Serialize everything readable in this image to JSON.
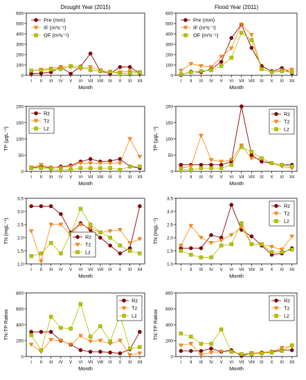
{
  "colors": {
    "pre": "#8B0000",
    "ifc": "#FF8C1A",
    "ofc": "#B5C400"
  },
  "months": [
    "I",
    "II",
    "III",
    "IV",
    "V",
    "VI",
    "VII",
    "VIII",
    "IX",
    "X",
    "XI",
    "XII"
  ],
  "xlabel": "Month",
  "chart_data": [
    {
      "type": "line",
      "id": "p0",
      "title": "Drought Year (2015)",
      "xlabel": "Month",
      "ylabel": "",
      "ylim": [
        0,
        600
      ],
      "yticks": [
        0,
        100,
        200,
        300,
        400,
        500,
        600
      ],
      "legend": "top-left",
      "series": [
        {
          "name": "Pre (mm)",
          "marker": "circle",
          "color": "#8B0000",
          "values": [
            15,
            20,
            30,
            80,
            15,
            85,
            210,
            40,
            15,
            80,
            80,
            20
          ]
        },
        {
          "name": "IF (m³s⁻¹)",
          "marker": "tri",
          "color": "#FF8C1A",
          "values": [
            45,
            55,
            65,
            80,
            80,
            60,
            80,
            50,
            30,
            30,
            40,
            30
          ]
        },
        {
          "name": "OF (m³s⁻¹)",
          "marker": "square",
          "color": "#B5C400",
          "values": [
            45,
            50,
            55,
            60,
            90,
            80,
            50,
            40,
            35,
            15,
            20,
            25
          ]
        }
      ]
    },
    {
      "type": "line",
      "id": "p1",
      "title": "Flood Year (2011)",
      "xlabel": "Month",
      "ylabel": "",
      "ylim": [
        0,
        600
      ],
      "yticks": [
        0,
        100,
        200,
        300,
        400,
        500,
        600
      ],
      "legend": "top-left",
      "series": [
        {
          "name": "Pre (mm)",
          "marker": "circle",
          "color": "#8B0000",
          "values": [
            5,
            35,
            30,
            60,
            130,
            360,
            490,
            265,
            90,
            40,
            70,
            20
          ]
        },
        {
          "name": "IF (m³s⁻¹)",
          "marker": "tri",
          "color": "#FF8C1A",
          "values": [
            45,
            110,
            90,
            80,
            180,
            260,
            490,
            390,
            60,
            30,
            50,
            55
          ]
        },
        {
          "name": "OF (m³s⁻¹)",
          "marker": "square",
          "color": "#B5C400",
          "values": [
            10,
            30,
            40,
            50,
            90,
            170,
            410,
            340,
            60,
            30,
            40,
            30
          ]
        }
      ]
    },
    {
      "type": "line",
      "id": "p2",
      "title": "",
      "xlabel": "Month",
      "ylabel": "TP (μgL⁻¹)",
      "ylim": [
        0,
        200
      ],
      "yticks": [
        0,
        50,
        100,
        150,
        200
      ],
      "legend": "top-left",
      "series": [
        {
          "name": "Rz",
          "marker": "circle",
          "color": "#8B0000",
          "values": [
            10,
            15,
            10,
            15,
            18,
            30,
            38,
            30,
            32,
            38,
            15,
            10
          ]
        },
        {
          "name": "Tz",
          "marker": "tri",
          "color": "#FF8C1A",
          "values": [
            12,
            20,
            12,
            12,
            15,
            25,
            25,
            25,
            25,
            25,
            100,
            45
          ]
        },
        {
          "name": "Lz",
          "marker": "square",
          "color": "#B5C400",
          "values": [
            10,
            10,
            8,
            5,
            5,
            10,
            10,
            10,
            10,
            5,
            15,
            15
          ]
        }
      ]
    },
    {
      "type": "line",
      "id": "p3",
      "title": "",
      "xlabel": "Month",
      "ylabel": "TP (μgL⁻¹)",
      "ylim": [
        0,
        200
      ],
      "yticks": [
        0,
        50,
        100,
        150,
        200
      ],
      "legend": "top-right",
      "series": [
        {
          "name": "Rz",
          "marker": "circle",
          "color": "#8B0000",
          "values": [
            20,
            20,
            20,
            20,
            20,
            30,
            200,
            50,
            30,
            25,
            20,
            20
          ]
        },
        {
          "name": "Tz",
          "marker": "tri",
          "color": "#FF8C1A",
          "values": [
            10,
            15,
            110,
            35,
            30,
            35,
            80,
            40,
            40,
            25,
            15,
            10
          ]
        },
        {
          "name": "Lz",
          "marker": "square",
          "color": "#B5C400",
          "values": [
            5,
            5,
            10,
            10,
            10,
            20,
            75,
            60,
            40,
            25,
            20,
            15
          ]
        }
      ]
    },
    {
      "type": "line",
      "id": "p4",
      "title": "",
      "xlabel": "Month",
      "ylabel": "TN (mgL⁻¹)",
      "ylim": [
        1.0,
        3.5
      ],
      "yticks": [
        1.0,
        1.5,
        2.0,
        2.5,
        3.0,
        3.5
      ],
      "legend": "bottom-left",
      "series": [
        {
          "name": "Rz",
          "marker": "circle",
          "color": "#8B0000",
          "values": [
            3.2,
            3.2,
            3.2,
            2.9,
            2.2,
            2.55,
            2.3,
            2.0,
            1.7,
            1.4,
            1.6,
            3.2
          ]
        },
        {
          "name": "Tz",
          "marker": "tri",
          "color": "#FF8C1A",
          "values": [
            2.25,
            1.1,
            2.5,
            2.5,
            2.1,
            2.5,
            2.35,
            2.2,
            2.25,
            2.3,
            1.8,
            1.95
          ]
        },
        {
          "name": "Lz",
          "marker": "square",
          "color": "#B5C400",
          "values": [
            1.3,
            1.4,
            1.8,
            1.4,
            2.15,
            3.1,
            2.5,
            2.2,
            2.0,
            1.7,
            1.5,
            1.4
          ]
        }
      ]
    },
    {
      "type": "line",
      "id": "p5",
      "title": "",
      "xlabel": "Month",
      "ylabel": "TN (mgL⁻¹)",
      "ylim": [
        1.0,
        3.5
      ],
      "yticks": [
        1.0,
        1.5,
        2.0,
        2.5,
        3.0,
        3.5
      ],
      "legend": "top-right",
      "series": [
        {
          "name": "Rz",
          "marker": "circle",
          "color": "#8B0000",
          "values": [
            1.6,
            1.6,
            1.6,
            2.1,
            2.0,
            3.25,
            2.3,
            2.05,
            1.7,
            1.35,
            1.4,
            1.6
          ]
        },
        {
          "name": "Tz",
          "marker": "tri",
          "color": "#FF8C1A",
          "values": [
            1.7,
            2.45,
            2.0,
            1.8,
            1.9,
            2.1,
            2.4,
            1.75,
            1.75,
            1.65,
            1.55,
            2.05
          ]
        },
        {
          "name": "Lz",
          "marker": "square",
          "color": "#B5C400",
          "values": [
            1.5,
            1.35,
            1.25,
            1.25,
            1.7,
            1.75,
            2.55,
            1.75,
            1.75,
            1.45,
            1.45,
            1.55
          ]
        }
      ]
    },
    {
      "type": "line",
      "id": "p6",
      "title": "",
      "xlabel": "Month",
      "ylabel": "TN:TP Ratios",
      "ylim": [
        0,
        800
      ],
      "yticks": [
        0,
        200,
        400,
        600,
        800
      ],
      "legend": "top-right",
      "series": [
        {
          "name": "Rz",
          "marker": "circle",
          "color": "#8B0000",
          "values": [
            310,
            310,
            310,
            200,
            150,
            80,
            60,
            60,
            50,
            40,
            90,
            310
          ]
        },
        {
          "name": "Tz",
          "marker": "tri",
          "color": "#FF8C1A",
          "values": [
            150,
            60,
            210,
            200,
            150,
            260,
            190,
            200,
            160,
            200,
            20,
            40
          ]
        },
        {
          "name": "Lz",
          "marker": "square",
          "color": "#B5C400",
          "values": [
            270,
            80,
            500,
            360,
            350,
            660,
            250,
            380,
            190,
            520,
            100,
            120
          ]
        }
      ]
    },
    {
      "type": "line",
      "id": "p7",
      "title": "",
      "xlabel": "Month",
      "ylabel": "TN:TP Ratios",
      "ylim": [
        0,
        800
      ],
      "yticks": [
        0,
        200,
        400,
        600,
        800
      ],
      "legend": "top-right",
      "series": [
        {
          "name": "Rz",
          "marker": "circle",
          "color": "#8B0000",
          "values": [
            70,
            70,
            70,
            100,
            60,
            80,
            10,
            40,
            50,
            60,
            80,
            80
          ]
        },
        {
          "name": "Tz",
          "marker": "tri",
          "color": "#FF8C1A",
          "values": [
            140,
            160,
            20,
            50,
            60,
            60,
            30,
            45,
            45,
            60,
            110,
            130
          ]
        },
        {
          "name": "Lz",
          "marker": "square",
          "color": "#B5C400",
          "values": [
            290,
            250,
            160,
            160,
            340,
            60,
            30,
            30,
            40,
            50,
            70,
            140
          ]
        }
      ]
    }
  ]
}
